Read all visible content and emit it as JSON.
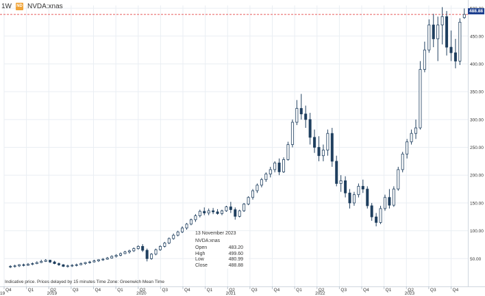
{
  "header": {
    "interval": "1W",
    "symbol_icon": "ND",
    "symbol": "NVDA:xnas"
  },
  "tooltip": {
    "date": "13 November 2023",
    "symbol": "NVDA:xnas",
    "open_label": "Open",
    "open_value": "483.20",
    "high_label": "High",
    "high_value": "499.60",
    "low_label": "Low",
    "low_value": "480.99",
    "close_label": "Close",
    "close_value": "488.88"
  },
  "footer": {
    "note": "Indicative price. Prices delayed by 15 minutes    Time Zone: Greenwich Mean Time"
  },
  "price_label": "488.88",
  "colors": {
    "background": "#ffffff",
    "candle": "#1f3f5f",
    "grid": "#e9eef3",
    "reference_line": "#e85a5a",
    "price_tag": "#1d3f8f",
    "axis_text": "#333333"
  },
  "chart_data": {
    "type": "candlestick",
    "ylim": [
      0,
      505
    ],
    "yticks": [
      "50.00",
      "100.00",
      "150.00",
      "200.00",
      "250.00",
      "300.00",
      "350.00",
      "400.00",
      "450.00",
      "500.00"
    ],
    "x_axis": {
      "quarter_labels": [
        "Q4",
        "Q1",
        "Q2",
        "Q3",
        "Q4",
        "Q1",
        "Q2",
        "Q3",
        "Q4",
        "Q1",
        "Q2",
        "Q3",
        "Q4",
        "Q1",
        "Q2",
        "Q3",
        "Q4",
        "Q1",
        "Q2",
        "Q3",
        "Q4"
      ],
      "year_labels": [
        "2019",
        "2020",
        "2021",
        "2022",
        "2023"
      ],
      "left_year_label": "19"
    },
    "reference_line": 488.88,
    "grid": true,
    "series": [
      {
        "values": [
          {
            "t": 1,
            "o": 35,
            "h": 38,
            "l": 33,
            "c": 36
          },
          {
            "t": 2,
            "o": 36,
            "h": 39,
            "l": 34,
            "c": 37
          },
          {
            "t": 3,
            "o": 37,
            "h": 40,
            "l": 35,
            "c": 39
          },
          {
            "t": 4,
            "o": 39,
            "h": 41,
            "l": 36,
            "c": 38
          },
          {
            "t": 5,
            "o": 38,
            "h": 42,
            "l": 37,
            "c": 40
          },
          {
            "t": 6,
            "o": 40,
            "h": 43,
            "l": 38,
            "c": 41
          },
          {
            "t": 7,
            "o": 41,
            "h": 45,
            "l": 40,
            "c": 43
          },
          {
            "t": 8,
            "o": 43,
            "h": 48,
            "l": 42,
            "c": 45
          },
          {
            "t": 9,
            "o": 45,
            "h": 49,
            "l": 44,
            "c": 47
          },
          {
            "t": 10,
            "o": 47,
            "h": 48,
            "l": 42,
            "c": 44
          },
          {
            "t": 11,
            "o": 44,
            "h": 46,
            "l": 40,
            "c": 41
          },
          {
            "t": 12,
            "o": 41,
            "h": 43,
            "l": 37,
            "c": 39
          },
          {
            "t": 13,
            "o": 39,
            "h": 40,
            "l": 35,
            "c": 36
          },
          {
            "t": 14,
            "o": 36,
            "h": 39,
            "l": 34,
            "c": 37
          },
          {
            "t": 15,
            "o": 37,
            "h": 40,
            "l": 35,
            "c": 38
          },
          {
            "t": 16,
            "o": 38,
            "h": 41,
            "l": 36,
            "c": 39
          },
          {
            "t": 17,
            "o": 39,
            "h": 43,
            "l": 38,
            "c": 41
          },
          {
            "t": 18,
            "o": 41,
            "h": 44,
            "l": 39,
            "c": 43
          },
          {
            "t": 19,
            "o": 43,
            "h": 46,
            "l": 41,
            "c": 44
          },
          {
            "t": 20,
            "o": 44,
            "h": 48,
            "l": 43,
            "c": 46
          },
          {
            "t": 21,
            "o": 46,
            "h": 49,
            "l": 44,
            "c": 48
          },
          {
            "t": 22,
            "o": 48,
            "h": 51,
            "l": 46,
            "c": 49
          },
          {
            "t": 23,
            "o": 49,
            "h": 53,
            "l": 48,
            "c": 51
          },
          {
            "t": 24,
            "o": 51,
            "h": 56,
            "l": 50,
            "c": 54
          },
          {
            "t": 25,
            "o": 54,
            "h": 58,
            "l": 52,
            "c": 56
          },
          {
            "t": 26,
            "o": 56,
            "h": 61,
            "l": 54,
            "c": 59
          },
          {
            "t": 27,
            "o": 59,
            "h": 64,
            "l": 58,
            "c": 62
          },
          {
            "t": 28,
            "o": 62,
            "h": 66,
            "l": 59,
            "c": 64
          },
          {
            "t": 29,
            "o": 64,
            "h": 70,
            "l": 62,
            "c": 68
          },
          {
            "t": 30,
            "o": 68,
            "h": 74,
            "l": 66,
            "c": 72
          },
          {
            "t": 31,
            "o": 72,
            "h": 76,
            "l": 62,
            "c": 65
          },
          {
            "t": 32,
            "o": 65,
            "h": 68,
            "l": 45,
            "c": 50
          },
          {
            "t": 33,
            "o": 50,
            "h": 60,
            "l": 48,
            "c": 58
          },
          {
            "t": 34,
            "o": 58,
            "h": 68,
            "l": 56,
            "c": 66
          },
          {
            "t": 35,
            "o": 66,
            "h": 74,
            "l": 64,
            "c": 72
          },
          {
            "t": 36,
            "o": 72,
            "h": 80,
            "l": 70,
            "c": 78
          },
          {
            "t": 37,
            "o": 78,
            "h": 88,
            "l": 76,
            "c": 86
          },
          {
            "t": 38,
            "o": 86,
            "h": 95,
            "l": 84,
            "c": 92
          },
          {
            "t": 39,
            "o": 92,
            "h": 100,
            "l": 90,
            "c": 98
          },
          {
            "t": 40,
            "o": 98,
            "h": 108,
            "l": 96,
            "c": 105
          },
          {
            "t": 41,
            "o": 105,
            "h": 114,
            "l": 102,
            "c": 112
          },
          {
            "t": 42,
            "o": 112,
            "h": 122,
            "l": 110,
            "c": 120
          },
          {
            "t": 43,
            "o": 120,
            "h": 130,
            "l": 116,
            "c": 127
          },
          {
            "t": 44,
            "o": 127,
            "h": 138,
            "l": 124,
            "c": 135
          },
          {
            "t": 45,
            "o": 135,
            "h": 142,
            "l": 128,
            "c": 132
          },
          {
            "t": 46,
            "o": 132,
            "h": 140,
            "l": 128,
            "c": 136
          },
          {
            "t": 47,
            "o": 136,
            "h": 141,
            "l": 130,
            "c": 134
          },
          {
            "t": 48,
            "o": 134,
            "h": 139,
            "l": 129,
            "c": 131
          },
          {
            "t": 49,
            "o": 131,
            "h": 138,
            "l": 128,
            "c": 136
          },
          {
            "t": 50,
            "o": 136,
            "h": 145,
            "l": 134,
            "c": 143
          },
          {
            "t": 51,
            "o": 143,
            "h": 152,
            "l": 132,
            "c": 138
          },
          {
            "t": 52,
            "o": 138,
            "h": 142,
            "l": 120,
            "c": 126
          },
          {
            "t": 53,
            "o": 126,
            "h": 138,
            "l": 124,
            "c": 136
          },
          {
            "t": 54,
            "o": 136,
            "h": 150,
            "l": 134,
            "c": 148
          },
          {
            "t": 55,
            "o": 148,
            "h": 162,
            "l": 146,
            "c": 160
          },
          {
            "t": 56,
            "o": 160,
            "h": 175,
            "l": 156,
            "c": 172
          },
          {
            "t": 57,
            "o": 172,
            "h": 185,
            "l": 168,
            "c": 182
          },
          {
            "t": 58,
            "o": 182,
            "h": 195,
            "l": 178,
            "c": 192
          },
          {
            "t": 59,
            "o": 192,
            "h": 205,
            "l": 188,
            "c": 202
          },
          {
            "t": 60,
            "o": 202,
            "h": 215,
            "l": 196,
            "c": 210
          },
          {
            "t": 61,
            "o": 210,
            "h": 225,
            "l": 205,
            "c": 222
          },
          {
            "t": 62,
            "o": 222,
            "h": 230,
            "l": 200,
            "c": 206
          },
          {
            "t": 63,
            "o": 206,
            "h": 232,
            "l": 204,
            "c": 228
          },
          {
            "t": 64,
            "o": 228,
            "h": 260,
            "l": 226,
            "c": 255
          },
          {
            "t": 65,
            "o": 255,
            "h": 300,
            "l": 250,
            "c": 295
          },
          {
            "t": 66,
            "o": 295,
            "h": 335,
            "l": 290,
            "c": 320
          },
          {
            "t": 67,
            "o": 320,
            "h": 346,
            "l": 300,
            "c": 310
          },
          {
            "t": 68,
            "o": 310,
            "h": 325,
            "l": 285,
            "c": 300
          },
          {
            "t": 69,
            "o": 300,
            "h": 312,
            "l": 255,
            "c": 268
          },
          {
            "t": 70,
            "o": 268,
            "h": 282,
            "l": 240,
            "c": 250
          },
          {
            "t": 71,
            "o": 250,
            "h": 270,
            "l": 225,
            "c": 235
          },
          {
            "t": 72,
            "o": 235,
            "h": 255,
            "l": 225,
            "c": 245
          },
          {
            "t": 73,
            "o": 245,
            "h": 282,
            "l": 235,
            "c": 275
          },
          {
            "t": 74,
            "o": 275,
            "h": 285,
            "l": 215,
            "c": 225
          },
          {
            "t": 75,
            "o": 225,
            "h": 235,
            "l": 180,
            "c": 185
          },
          {
            "t": 76,
            "o": 185,
            "h": 200,
            "l": 170,
            "c": 190
          },
          {
            "t": 77,
            "o": 190,
            "h": 198,
            "l": 160,
            "c": 168
          },
          {
            "t": 78,
            "o": 168,
            "h": 175,
            "l": 140,
            "c": 150
          },
          {
            "t": 79,
            "o": 150,
            "h": 170,
            "l": 145,
            "c": 165
          },
          {
            "t": 80,
            "o": 165,
            "h": 185,
            "l": 160,
            "c": 180
          },
          {
            "t": 81,
            "o": 180,
            "h": 192,
            "l": 168,
            "c": 175
          },
          {
            "t": 82,
            "o": 175,
            "h": 180,
            "l": 140,
            "c": 145
          },
          {
            "t": 83,
            "o": 145,
            "h": 150,
            "l": 118,
            "c": 125
          },
          {
            "t": 84,
            "o": 125,
            "h": 132,
            "l": 108,
            "c": 115
          },
          {
            "t": 85,
            "o": 115,
            "h": 145,
            "l": 112,
            "c": 140
          },
          {
            "t": 86,
            "o": 140,
            "h": 165,
            "l": 136,
            "c": 160
          },
          {
            "t": 87,
            "o": 160,
            "h": 175,
            "l": 140,
            "c": 146
          },
          {
            "t": 88,
            "o": 146,
            "h": 180,
            "l": 143,
            "c": 175
          },
          {
            "t": 89,
            "o": 175,
            "h": 215,
            "l": 172,
            "c": 210
          },
          {
            "t": 90,
            "o": 210,
            "h": 242,
            "l": 205,
            "c": 238
          },
          {
            "t": 91,
            "o": 238,
            "h": 265,
            "l": 230,
            "c": 260
          },
          {
            "t": 92,
            "o": 260,
            "h": 282,
            "l": 255,
            "c": 275
          },
          {
            "t": 93,
            "o": 275,
            "h": 300,
            "l": 265,
            "c": 285
          },
          {
            "t": 94,
            "o": 285,
            "h": 405,
            "l": 282,
            "c": 390
          },
          {
            "t": 95,
            "o": 390,
            "h": 440,
            "l": 385,
            "c": 425
          },
          {
            "t": 96,
            "o": 425,
            "h": 480,
            "l": 420,
            "c": 470
          },
          {
            "t": 97,
            "o": 470,
            "h": 490,
            "l": 430,
            "c": 445
          },
          {
            "t": 98,
            "o": 445,
            "h": 485,
            "l": 405,
            "c": 470
          },
          {
            "t": 99,
            "o": 470,
            "h": 502,
            "l": 435,
            "c": 485
          },
          {
            "t": 100,
            "o": 485,
            "h": 495,
            "l": 415,
            "c": 430
          },
          {
            "t": 101,
            "o": 430,
            "h": 460,
            "l": 405,
            "c": 420
          },
          {
            "t": 102,
            "o": 420,
            "h": 445,
            "l": 392,
            "c": 405
          },
          {
            "t": 103,
            "o": 405,
            "h": 482,
            "l": 398,
            "c": 475
          },
          {
            "t": 104,
            "o": 483.2,
            "h": 499.6,
            "l": 480.99,
            "c": 488.88
          }
        ]
      }
    ]
  }
}
